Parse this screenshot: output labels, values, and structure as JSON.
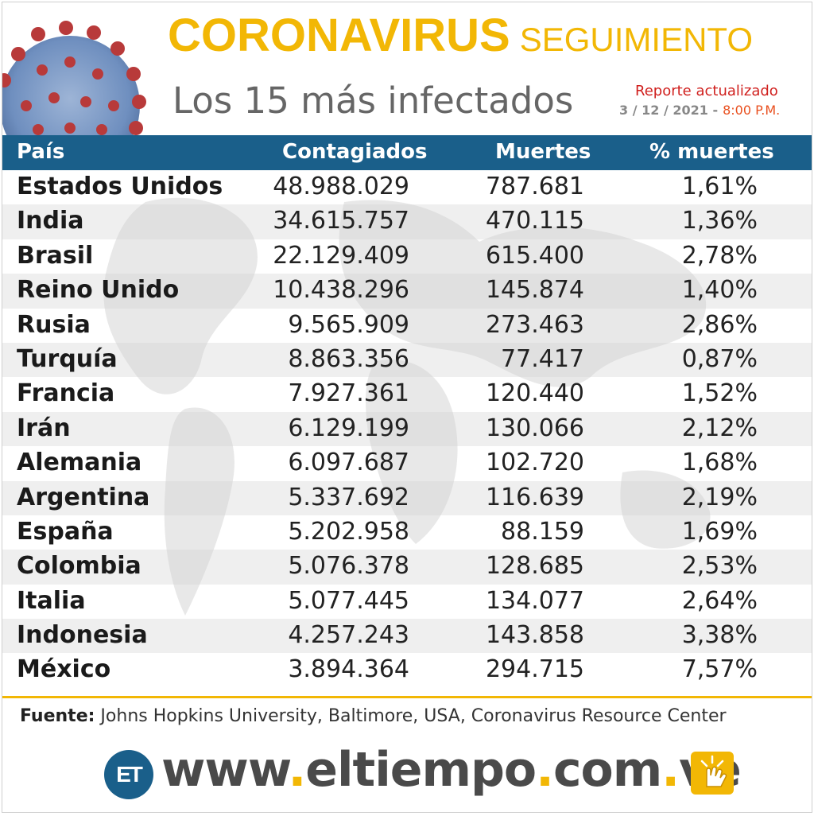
{
  "header": {
    "title_main": "CORONAVIRUS",
    "title_sub": "SEGUIMIENTO",
    "subtitle": "Los 15 más infectados",
    "report_label": "Reporte actualizado",
    "report_date": "3 / 12 / 2021 -",
    "report_time": "8:00 P.M."
  },
  "colors": {
    "accent": "#f2b705",
    "header_bar": "#1a5f8a",
    "report_red": "#d0201e"
  },
  "chart_data": {
    "type": "table",
    "columns": [
      "País",
      "Contagiados",
      "Muertes",
      "% muertes"
    ],
    "rows": [
      {
        "country": "Estados Unidos",
        "cases": "48.988.029",
        "deaths": "787.681",
        "pct": "1,61%"
      },
      {
        "country": "India",
        "cases": "34.615.757",
        "deaths": "470.115",
        "pct": "1,36%"
      },
      {
        "country": "Brasil",
        "cases": "22.129.409",
        "deaths": "615.400",
        "pct": "2,78%"
      },
      {
        "country": "Reino Unido",
        "cases": "10.438.296",
        "deaths": "145.874",
        "pct": "1,40%"
      },
      {
        "country": "Rusia",
        "cases": "9.565.909",
        "deaths": "273.463",
        "pct": "2,86%"
      },
      {
        "country": "Turquía",
        "cases": "8.863.356",
        "deaths": "77.417",
        "pct": "0,87%"
      },
      {
        "country": "Francia",
        "cases": "7.927.361",
        "deaths": "120.440",
        "pct": "1,52%"
      },
      {
        "country": "Irán",
        "cases": "6.129.199",
        "deaths": "130.066",
        "pct": "2,12%"
      },
      {
        "country": "Alemania",
        "cases": "6.097.687",
        "deaths": "102.720",
        "pct": "1,68%"
      },
      {
        "country": "Argentina",
        "cases": "5.337.692",
        "deaths": "116.639",
        "pct": "2,19%"
      },
      {
        "country": "España",
        "cases": "5.202.958",
        "deaths": "88.159",
        "pct": "1,69%"
      },
      {
        "country": "Colombia",
        "cases": "5.076.378",
        "deaths": "128.685",
        "pct": "2,53%"
      },
      {
        "country": "Italia",
        "cases": "5.077.445",
        "deaths": "134.077",
        "pct": "2,64%"
      },
      {
        "country": "Indonesia",
        "cases": "4.257.243",
        "deaths": "143.858",
        "pct": "3,38%"
      },
      {
        "country": "México",
        "cases": "3.894.364",
        "deaths": "294.715",
        "pct": "7,57%"
      }
    ]
  },
  "source": {
    "label": "Fuente:",
    "text": "Johns Hopkins University, Baltimore, USA, Coronavirus Resource Center"
  },
  "footer": {
    "logo_text": "ET",
    "url_www": "www",
    "url_name": "eltiempo",
    "url_com": "com",
    "url_ve": "ve",
    "url_dot": ".",
    "hand_icon": "pointing-hand-icon"
  }
}
